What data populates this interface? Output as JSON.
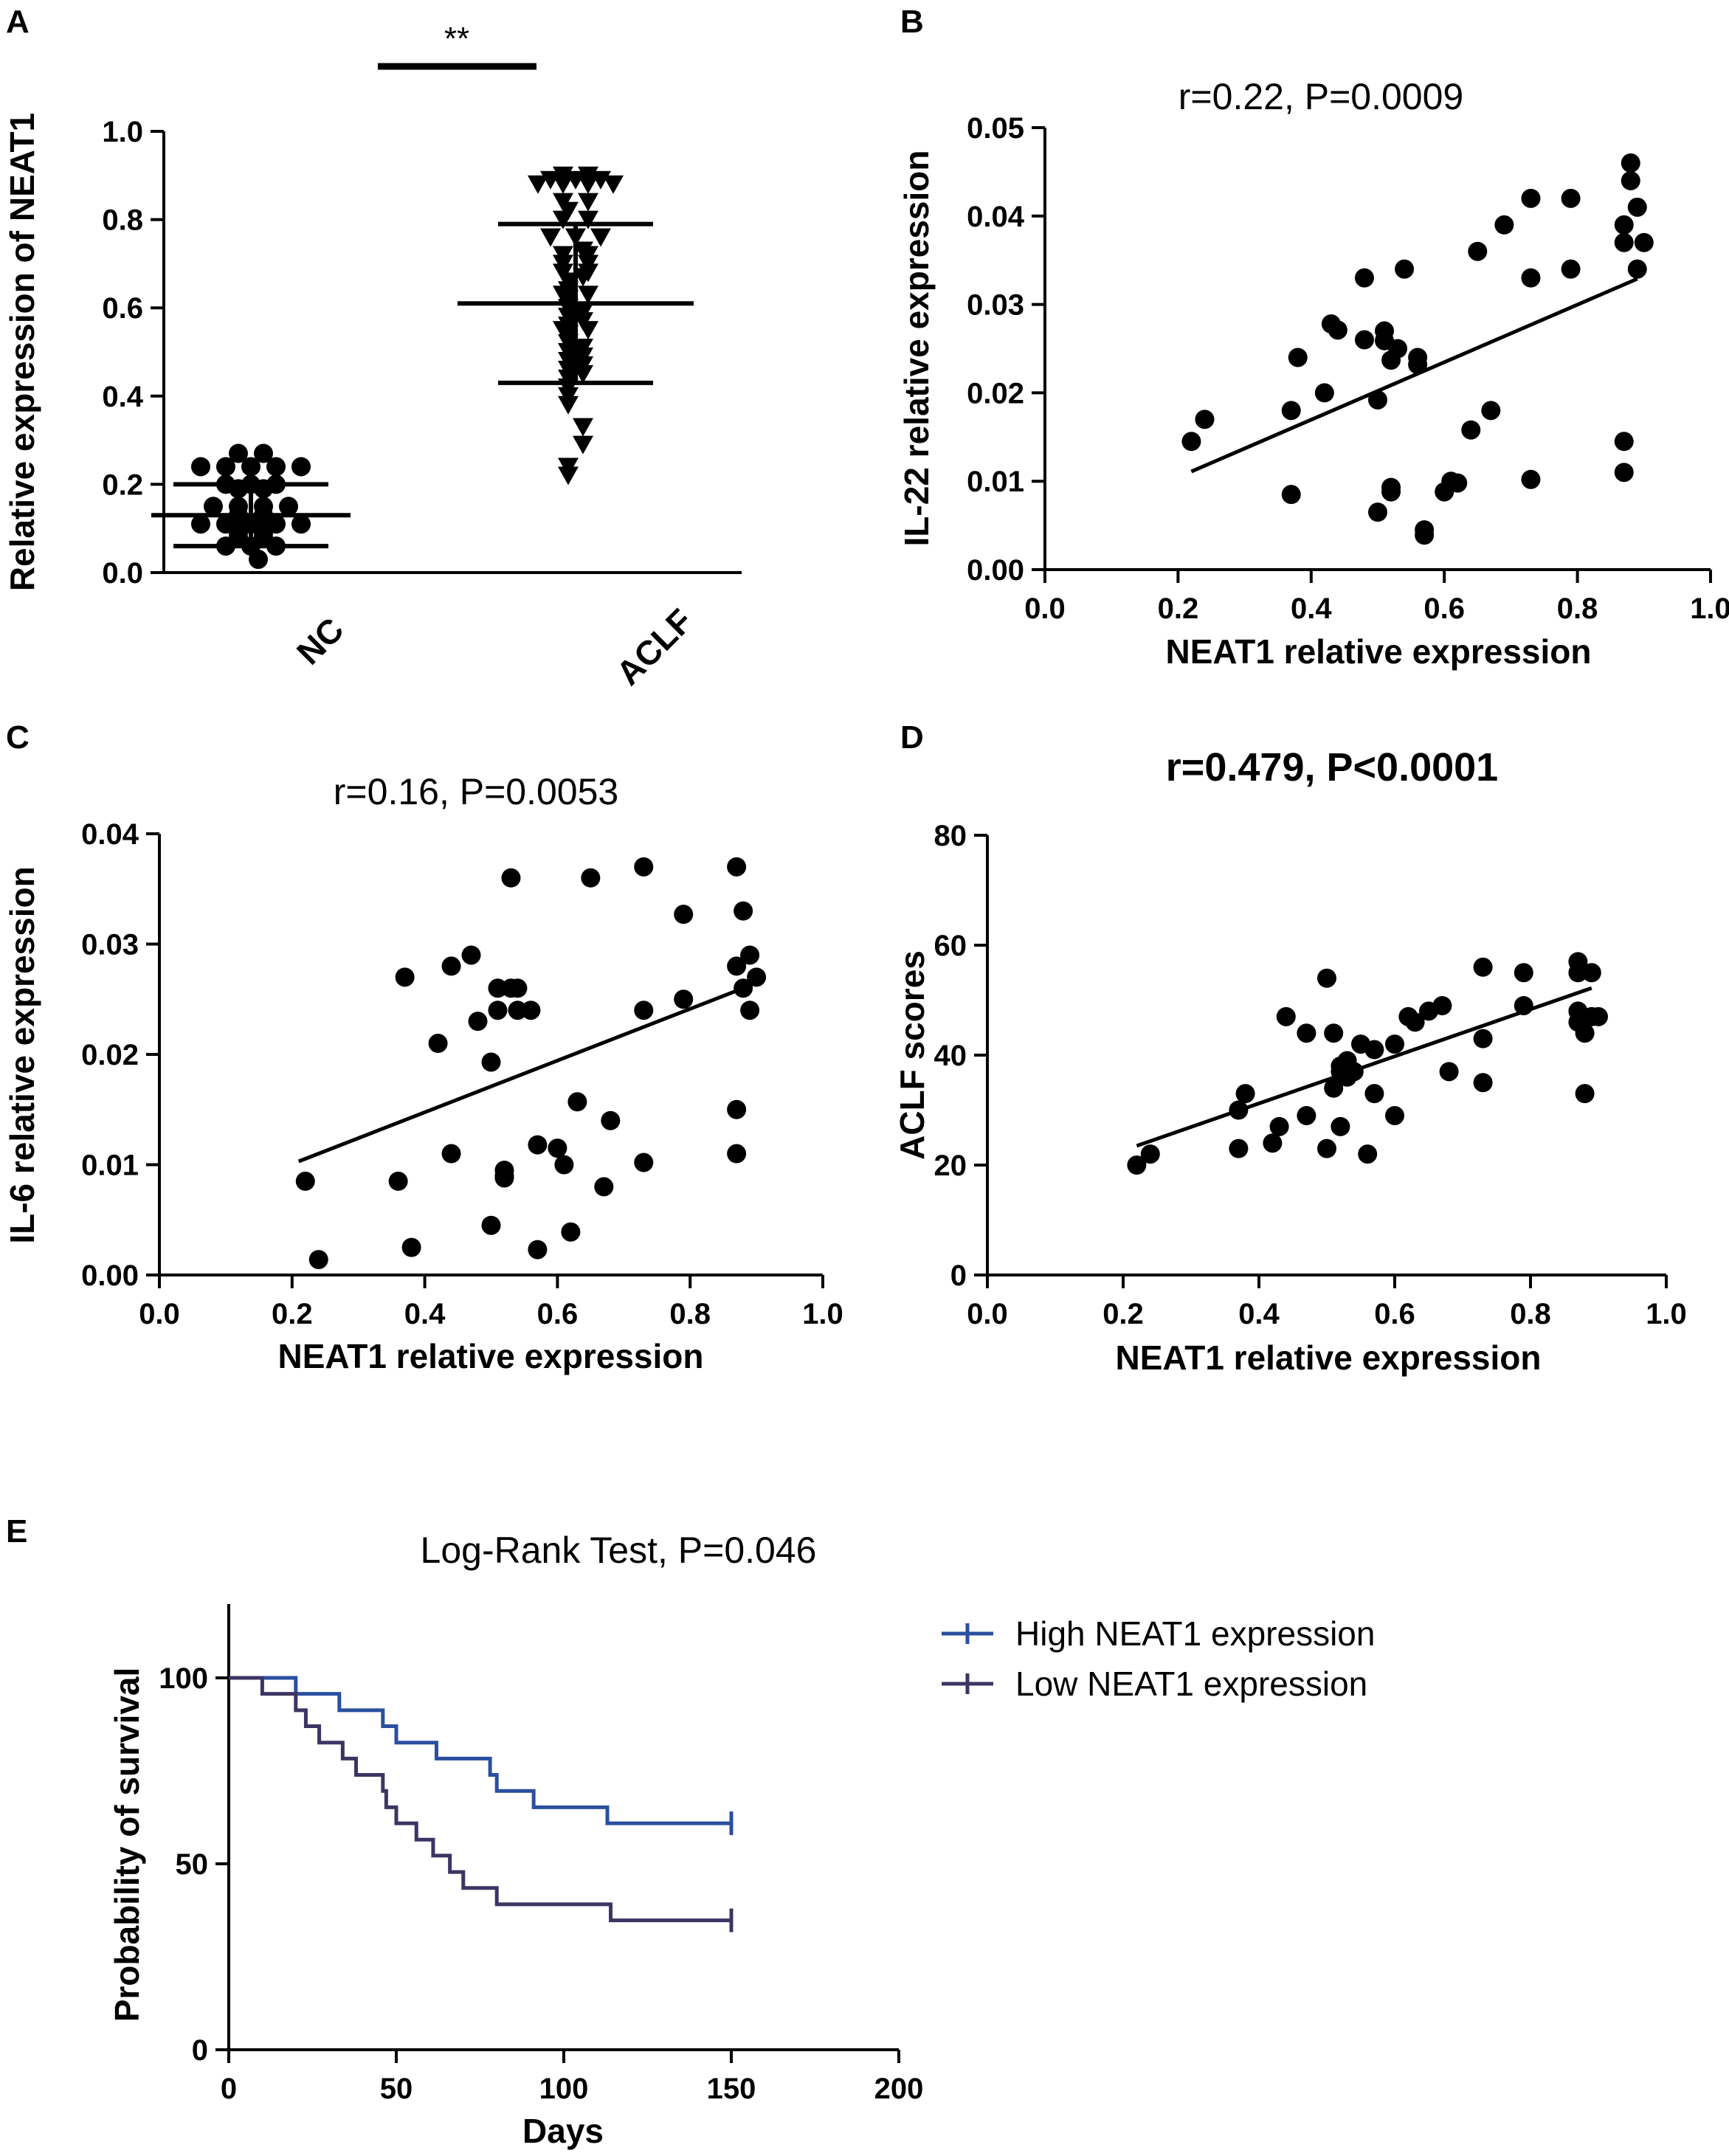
{
  "panels": {
    "A": {
      "label": "A"
    },
    "B": {
      "label": "B"
    },
    "C": {
      "label": "C"
    },
    "D": {
      "label": "D"
    },
    "E": {
      "label": "E"
    }
  },
  "chart_data": [
    {
      "id": "A",
      "type": "scatter",
      "subtype": "dot-plot",
      "title": "",
      "significance": "**",
      "xlabel": "",
      "ylabel": "Relative expression of NEAT1",
      "ylim": [
        0,
        1.0
      ],
      "yticks": [
        "0.0",
        "0.2",
        "0.4",
        "0.6",
        "0.8",
        "1.0"
      ],
      "categories": [
        "NC",
        "ACLF"
      ],
      "groups": [
        {
          "name": "NC",
          "marker": "circle",
          "mean": 0.13,
          "sd_upper": 0.2,
          "sd_lower": 0.06,
          "values": [
            0.27,
            0.27,
            0.24,
            0.24,
            0.24,
            0.24,
            0.24,
            0.2,
            0.2,
            0.2,
            0.19,
            0.19,
            0.15,
            0.15,
            0.15,
            0.15,
            0.13,
            0.13,
            0.11,
            0.11,
            0.11,
            0.11,
            0.11,
            0.1,
            0.1,
            0.09,
            0.09,
            0.08,
            0.08,
            0.06,
            0.06,
            0.06,
            0.03
          ]
        },
        {
          "name": "ACLF",
          "marker": "triangle-down",
          "mean": 0.61,
          "sd_upper": 0.79,
          "sd_lower": 0.43,
          "values": [
            0.9,
            0.9,
            0.89,
            0.89,
            0.89,
            0.88,
            0.88,
            0.88,
            0.88,
            0.84,
            0.84,
            0.82,
            0.8,
            0.8,
            0.76,
            0.76,
            0.76,
            0.73,
            0.72,
            0.72,
            0.7,
            0.7,
            0.68,
            0.68,
            0.67,
            0.66,
            0.64,
            0.63,
            0.63,
            0.62,
            0.6,
            0.59,
            0.58,
            0.57,
            0.56,
            0.55,
            0.55,
            0.54,
            0.52,
            0.51,
            0.5,
            0.49,
            0.48,
            0.47,
            0.46,
            0.45,
            0.44,
            0.42,
            0.4,
            0.38,
            0.33,
            0.29,
            0.24,
            0.22
          ]
        }
      ]
    },
    {
      "id": "B",
      "type": "scatter",
      "title": "r=0.22, P=0.0009",
      "xlabel": "NEAT1 relative expression",
      "ylabel": "IL-22 relative expression",
      "xlim": [
        0,
        1.0
      ],
      "ylim": [
        0,
        0.05
      ],
      "xticks": [
        "0.0",
        "0.2",
        "0.4",
        "0.6",
        "0.8",
        "1.0"
      ],
      "yticks": [
        "0.00",
        "0.01",
        "0.02",
        "0.03",
        "0.04",
        "0.05"
      ],
      "fit_line": {
        "x": [
          0.22,
          0.89
        ],
        "y": [
          0.0111,
          0.0329
        ]
      },
      "points": [
        [
          0.22,
          0.0145
        ],
        [
          0.24,
          0.017
        ],
        [
          0.37,
          0.0085
        ],
        [
          0.37,
          0.018
        ],
        [
          0.38,
          0.024
        ],
        [
          0.42,
          0.02
        ],
        [
          0.43,
          0.0278
        ],
        [
          0.44,
          0.0271
        ],
        [
          0.48,
          0.026
        ],
        [
          0.48,
          0.033
        ],
        [
          0.5,
          0.0065
        ],
        [
          0.5,
          0.0192
        ],
        [
          0.51,
          0.027
        ],
        [
          0.51,
          0.0259
        ],
        [
          0.52,
          0.0237
        ],
        [
          0.52,
          0.0093
        ],
        [
          0.52,
          0.0088
        ],
        [
          0.53,
          0.025
        ],
        [
          0.54,
          0.034
        ],
        [
          0.56,
          0.024
        ],
        [
          0.56,
          0.0232
        ],
        [
          0.57,
          0.0045
        ],
        [
          0.57,
          0.0039
        ],
        [
          0.6,
          0.0088
        ],
        [
          0.61,
          0.01
        ],
        [
          0.62,
          0.0098
        ],
        [
          0.64,
          0.0158
        ],
        [
          0.65,
          0.036
        ],
        [
          0.67,
          0.018
        ],
        [
          0.69,
          0.039
        ],
        [
          0.73,
          0.033
        ],
        [
          0.73,
          0.042
        ],
        [
          0.73,
          0.0102
        ],
        [
          0.79,
          0.034
        ],
        [
          0.79,
          0.042
        ],
        [
          0.87,
          0.039
        ],
        [
          0.87,
          0.037
        ],
        [
          0.87,
          0.0145
        ],
        [
          0.87,
          0.011
        ],
        [
          0.88,
          0.046
        ],
        [
          0.88,
          0.044
        ],
        [
          0.89,
          0.041
        ],
        [
          0.89,
          0.034
        ],
        [
          0.9,
          0.037
        ]
      ]
    },
    {
      "id": "C",
      "type": "scatter",
      "title": "r=0.16, P=0.0053",
      "xlabel": "NEAT1 relative expression",
      "ylabel": "IL-6 relative expression",
      "xlim": [
        0,
        1.0
      ],
      "ylim": [
        0,
        0.04
      ],
      "xticks": [
        "0.0",
        "0.2",
        "0.4",
        "0.6",
        "0.8",
        "1.0"
      ],
      "yticks": [
        "0.00",
        "0.01",
        "0.02",
        "0.03",
        "0.04"
      ],
      "fit_line": {
        "x": [
          0.21,
          0.88
        ],
        "y": [
          0.0103,
          0.026
        ]
      },
      "points": [
        [
          0.22,
          0.0085
        ],
        [
          0.24,
          0.0014
        ],
        [
          0.36,
          0.0085
        ],
        [
          0.37,
          0.027
        ],
        [
          0.38,
          0.0025
        ],
        [
          0.42,
          0.021
        ],
        [
          0.44,
          0.028
        ],
        [
          0.44,
          0.011
        ],
        [
          0.47,
          0.029
        ],
        [
          0.48,
          0.023
        ],
        [
          0.5,
          0.0045
        ],
        [
          0.5,
          0.0193
        ],
        [
          0.51,
          0.026
        ],
        [
          0.51,
          0.024
        ],
        [
          0.52,
          0.0095
        ],
        [
          0.52,
          0.009
        ],
        [
          0.52,
          0.0088
        ],
        [
          0.53,
          0.026
        ],
        [
          0.53,
          0.036
        ],
        [
          0.54,
          0.026
        ],
        [
          0.54,
          0.024
        ],
        [
          0.56,
          0.024
        ],
        [
          0.57,
          0.0023
        ],
        [
          0.57,
          0.0118
        ],
        [
          0.6,
          0.0115
        ],
        [
          0.61,
          0.01
        ],
        [
          0.62,
          0.0039
        ],
        [
          0.63,
          0.0157
        ],
        [
          0.65,
          0.036
        ],
        [
          0.67,
          0.008
        ],
        [
          0.68,
          0.014
        ],
        [
          0.73,
          0.037
        ],
        [
          0.73,
          0.024
        ],
        [
          0.73,
          0.0102
        ],
        [
          0.79,
          0.025
        ],
        [
          0.79,
          0.0327
        ],
        [
          0.87,
          0.037
        ],
        [
          0.87,
          0.028
        ],
        [
          0.87,
          0.015
        ],
        [
          0.87,
          0.011
        ],
        [
          0.88,
          0.033
        ],
        [
          0.88,
          0.026
        ],
        [
          0.89,
          0.029
        ],
        [
          0.89,
          0.024
        ],
        [
          0.9,
          0.027
        ]
      ]
    },
    {
      "id": "D",
      "type": "scatter",
      "title": "r=0.479, P<0.0001",
      "xlabel": "NEAT1 relative expression",
      "ylabel": "ACLF scores",
      "xlim": [
        0,
        1.0
      ],
      "ylim": [
        0,
        80
      ],
      "xticks": [
        "0.0",
        "0.2",
        "0.4",
        "0.6",
        "0.8",
        "1.0"
      ],
      "yticks": [
        "0",
        "20",
        "40",
        "60",
        "80"
      ],
      "fit_line": {
        "x": [
          0.22,
          0.89
        ],
        "y": [
          23.5,
          52.2
        ]
      },
      "points": [
        [
          0.22,
          20
        ],
        [
          0.24,
          22
        ],
        [
          0.37,
          23
        ],
        [
          0.37,
          30
        ],
        [
          0.38,
          33
        ],
        [
          0.42,
          24
        ],
        [
          0.43,
          27
        ],
        [
          0.44,
          47
        ],
        [
          0.47,
          44
        ],
        [
          0.47,
          29
        ],
        [
          0.5,
          23
        ],
        [
          0.5,
          54
        ],
        [
          0.51,
          34
        ],
        [
          0.51,
          44
        ],
        [
          0.52,
          37
        ],
        [
          0.52,
          38
        ],
        [
          0.52,
          27
        ],
        [
          0.53,
          36
        ],
        [
          0.53,
          39
        ],
        [
          0.54,
          37
        ],
        [
          0.55,
          42
        ],
        [
          0.56,
          22
        ],
        [
          0.57,
          41
        ],
        [
          0.57,
          33
        ],
        [
          0.6,
          29
        ],
        [
          0.6,
          42
        ],
        [
          0.62,
          47
        ],
        [
          0.63,
          46
        ],
        [
          0.65,
          48
        ],
        [
          0.67,
          49
        ],
        [
          0.68,
          37
        ],
        [
          0.73,
          35
        ],
        [
          0.73,
          56
        ],
        [
          0.73,
          43
        ],
        [
          0.79,
          49
        ],
        [
          0.79,
          55
        ],
        [
          0.87,
          57
        ],
        [
          0.87,
          55
        ],
        [
          0.87,
          48
        ],
        [
          0.87,
          46
        ],
        [
          0.88,
          44
        ],
        [
          0.88,
          33
        ],
        [
          0.89,
          47
        ],
        [
          0.89,
          55
        ],
        [
          0.9,
          47
        ]
      ]
    },
    {
      "id": "E",
      "type": "line",
      "subtype": "kaplan-meier",
      "title": "Log-Rank Test, P=0.046",
      "xlabel": "Days",
      "ylabel": "Probability of survival",
      "xlim": [
        0,
        200
      ],
      "ylim": [
        0,
        120
      ],
      "xticks": [
        "0",
        "50",
        "100",
        "150",
        "200"
      ],
      "yticks": [
        "0",
        "50",
        "100"
      ],
      "legend_position": "right",
      "series": [
        {
          "name": "High NEAT1 expression",
          "color": "#2a4fa0",
          "steps": [
            [
              0,
              100
            ],
            [
              20,
              95.7
            ],
            [
              33,
              91.3
            ],
            [
              46,
              87
            ],
            [
              50,
              82.6
            ],
            [
              62,
              78.3
            ],
            [
              78,
              73.9
            ],
            [
              80,
              69.6
            ],
            [
              91,
              65.2
            ],
            [
              113,
              60.9
            ],
            [
              150,
              60.9
            ]
          ],
          "censored": [
            [
              150,
              60.9
            ]
          ]
        },
        {
          "name": "Low NEAT1 expression",
          "color": "#3e3463",
          "steps": [
            [
              0,
              100
            ],
            [
              10,
              95.7
            ],
            [
              20,
              91.3
            ],
            [
              23,
              87
            ],
            [
              27,
              82.6
            ],
            [
              34,
              78.3
            ],
            [
              38,
              73.9
            ],
            [
              46,
              69.6
            ],
            [
              47,
              65.2
            ],
            [
              50,
              60.9
            ],
            [
              56,
              56.5
            ],
            [
              61,
              52.2
            ],
            [
              66,
              47.8
            ],
            [
              70,
              43.5
            ],
            [
              80,
              39.1
            ],
            [
              114,
              34.8
            ],
            [
              150,
              34.8
            ]
          ],
          "censored": [
            [
              150,
              34.8
            ]
          ]
        }
      ]
    }
  ]
}
